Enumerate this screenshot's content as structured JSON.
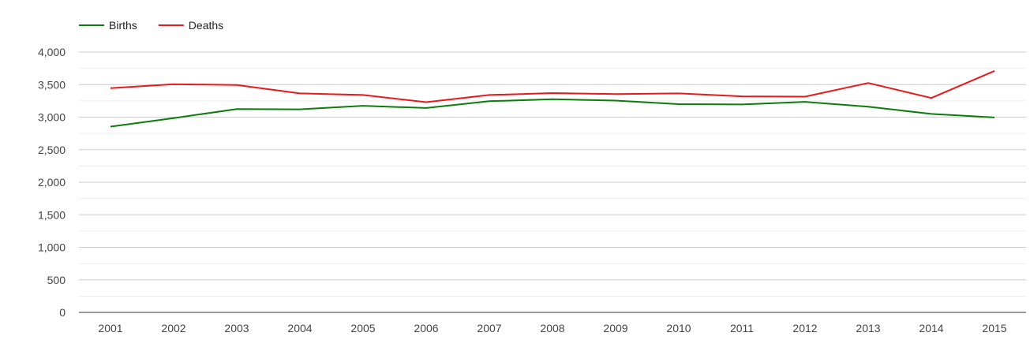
{
  "chart_data": {
    "type": "line",
    "title": "",
    "xlabel": "",
    "ylabel": "",
    "categories": [
      "2001",
      "2002",
      "2003",
      "2004",
      "2005",
      "2006",
      "2007",
      "2008",
      "2009",
      "2010",
      "2011",
      "2012",
      "2013",
      "2014",
      "2015"
    ],
    "series": [
      {
        "name": "Births",
        "color": "#0a7d0a",
        "values": [
          2855,
          2985,
          3125,
          3120,
          3175,
          3140,
          3245,
          3275,
          3255,
          3200,
          3195,
          3235,
          3160,
          3050,
          2995
        ]
      },
      {
        "name": "Deaths",
        "color": "#e8191b",
        "values": [
          3445,
          3505,
          3495,
          3365,
          3340,
          3230,
          3340,
          3370,
          3355,
          3365,
          3320,
          3315,
          3525,
          3295,
          3710
        ]
      }
    ],
    "ylim": [
      0,
      4000
    ],
    "yticks": [
      0,
      500,
      1000,
      1500,
      2000,
      2500,
      3000,
      3500,
      4000
    ],
    "ytick_labels": [
      "0",
      "500",
      "1,000",
      "1,500",
      "2,000",
      "2,500",
      "3,000",
      "3,500",
      "4,000"
    ],
    "grid": true,
    "minor_grid": true,
    "legend_position": "top-left"
  }
}
